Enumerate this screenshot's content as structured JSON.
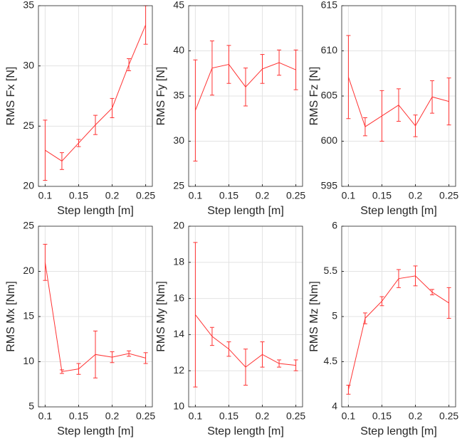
{
  "chart_data": [
    {
      "type": "line",
      "xlabel": "Step length [m]",
      "ylabel": "RMS Fx [N]",
      "x": [
        0.1,
        0.125,
        0.15,
        0.175,
        0.2,
        0.225,
        0.25
      ],
      "values": [
        23.0,
        22.1,
        23.6,
        25.1,
        26.5,
        30.1,
        33.4
      ],
      "errors": [
        2.5,
        0.7,
        0.3,
        0.8,
        0.8,
        0.5,
        1.6
      ],
      "color": "#ff3333",
      "xlim": [
        0.09,
        0.26
      ],
      "xticks": [
        0.1,
        0.15,
        0.2,
        0.25
      ],
      "ylim": [
        20,
        35
      ],
      "yticks": [
        20,
        25,
        30,
        35
      ],
      "grid": true
    },
    {
      "type": "line",
      "xlabel": "Step length [m]",
      "ylabel": "RMS Fy [N]",
      "x": [
        0.1,
        0.125,
        0.15,
        0.175,
        0.2,
        0.225,
        0.25
      ],
      "values": [
        33.4,
        38.1,
        38.5,
        36.0,
        38.0,
        38.7,
        37.9
      ],
      "errors": [
        5.6,
        3.0,
        2.1,
        2.1,
        1.6,
        1.4,
        2.2
      ],
      "color": "#ff3333",
      "xlim": [
        0.09,
        0.26
      ],
      "xticks": [
        0.1,
        0.15,
        0.2,
        0.25
      ],
      "ylim": [
        25,
        45
      ],
      "yticks": [
        25,
        30,
        35,
        40,
        45
      ],
      "grid": true
    },
    {
      "type": "line",
      "xlabel": "Step length [m]",
      "ylabel": "RMS Fz [N]",
      "x": [
        0.1,
        0.125,
        0.15,
        0.175,
        0.2,
        0.225,
        0.25
      ],
      "values": [
        607.1,
        601.6,
        602.8,
        604.0,
        601.7,
        604.9,
        604.4
      ],
      "errors": [
        4.6,
        1.0,
        2.8,
        1.8,
        1.2,
        1.8,
        2.6
      ],
      "color": "#ff3333",
      "xlim": [
        0.09,
        0.26
      ],
      "xticks": [
        0.1,
        0.15,
        0.2,
        0.25
      ],
      "ylim": [
        595,
        615
      ],
      "yticks": [
        595,
        600,
        605,
        610,
        615
      ],
      "grid": true
    },
    {
      "type": "line",
      "xlabel": "Step length [m]",
      "ylabel": "RMS Mx [Nm]",
      "x": [
        0.1,
        0.125,
        0.15,
        0.175,
        0.2,
        0.225,
        0.25
      ],
      "values": [
        21.0,
        8.9,
        9.2,
        10.8,
        10.5,
        10.9,
        10.4
      ],
      "errors": [
        2.0,
        0.2,
        0.6,
        2.6,
        0.6,
        0.3,
        0.6
      ],
      "color": "#ff3333",
      "xlim": [
        0.09,
        0.26
      ],
      "xticks": [
        0.1,
        0.15,
        0.2,
        0.25
      ],
      "ylim": [
        5,
        25
      ],
      "yticks": [
        5,
        10,
        15,
        20,
        25
      ],
      "grid": true
    },
    {
      "type": "line",
      "xlabel": "Step length [m]",
      "ylabel": "RMS My [Nm]",
      "x": [
        0.1,
        0.125,
        0.15,
        0.175,
        0.2,
        0.225,
        0.25
      ],
      "values": [
        15.1,
        13.9,
        13.2,
        12.2,
        12.9,
        12.4,
        12.3
      ],
      "errors": [
        4.0,
        0.5,
        0.4,
        1.0,
        0.7,
        0.2,
        0.3
      ],
      "color": "#ff3333",
      "xlim": [
        0.09,
        0.26
      ],
      "xticks": [
        0.1,
        0.15,
        0.2,
        0.25
      ],
      "ylim": [
        10,
        20
      ],
      "yticks": [
        10,
        12,
        14,
        16,
        18,
        20
      ],
      "grid": true
    },
    {
      "type": "line",
      "xlabel": "Step length [m]",
      "ylabel": "RMS Mz [Nm]",
      "x": [
        0.1,
        0.125,
        0.15,
        0.175,
        0.2,
        0.225,
        0.25
      ],
      "values": [
        4.19,
        4.98,
        5.17,
        5.42,
        5.45,
        5.27,
        5.15
      ],
      "errors": [
        0.05,
        0.06,
        0.05,
        0.1,
        0.11,
        0.03,
        0.17
      ],
      "color": "#ff3333",
      "xlim": [
        0.09,
        0.26
      ],
      "xticks": [
        0.1,
        0.15,
        0.2,
        0.25
      ],
      "ylim": [
        4,
        6
      ],
      "yticks": [
        4,
        4.5,
        5,
        5.5,
        6
      ],
      "grid": true
    }
  ]
}
